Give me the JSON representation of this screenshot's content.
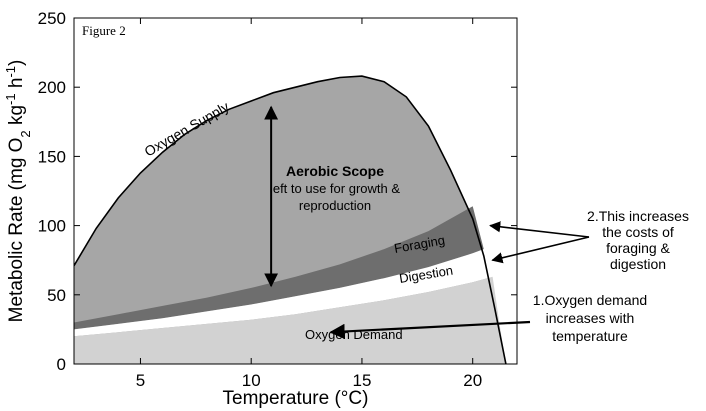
{
  "chart_data": {
    "type": "area",
    "figure_label": "Figure 2",
    "xlabel": "Temperature (°C)",
    "ylabel_parts": [
      "Metabolic Rate (mg O",
      "2",
      " kg",
      "-1",
      " h",
      "-1",
      ")"
    ],
    "xlim": [
      2,
      22
    ],
    "ylim": [
      0,
      250
    ],
    "xticks": [
      5,
      10,
      15,
      20
    ],
    "yticks": [
      0,
      50,
      100,
      150,
      200,
      250
    ],
    "grid": false,
    "colors": {
      "supply_fill": "#a6a6a6",
      "foraging_fill": "#6e6e6e",
      "digestion_fill": "#ffffff",
      "demand_fill": "#d2d2d2",
      "line": "#000000"
    },
    "series": [
      {
        "name": "Oxygen Supply",
        "x": [
          2,
          3,
          4,
          5,
          6,
          7,
          8,
          9,
          10,
          11,
          12,
          13,
          14,
          15,
          16,
          17,
          18,
          19,
          20,
          20.5,
          21,
          21.5
        ],
        "y": [
          71,
          98,
          120,
          138,
          153,
          166,
          176,
          184,
          190,
          196,
          200,
          204,
          207,
          208,
          204,
          193,
          172,
          140,
          105,
          78,
          40,
          0
        ]
      },
      {
        "name": "Foraging",
        "x": [
          2,
          4,
          6,
          8,
          10,
          12,
          14,
          16,
          18,
          20
        ],
        "y": [
          30,
          36,
          42,
          48,
          55,
          63,
          72,
          83,
          96,
          114
        ]
      },
      {
        "name": "Digestion",
        "x": [
          2,
          4,
          6,
          8,
          10,
          12,
          14,
          16,
          18,
          20,
          20.5
        ],
        "y": [
          25,
          29,
          33,
          38,
          43,
          49,
          55,
          62,
          70,
          80,
          83
        ]
      },
      {
        "name": "Oxygen Demand",
        "x": [
          2,
          4,
          6,
          8,
          10,
          12,
          14,
          16,
          18,
          20,
          20.9
        ],
        "y": [
          20,
          23,
          26,
          29,
          32,
          36,
          41,
          46,
          52,
          59,
          63
        ]
      }
    ],
    "annotations": {
      "aerobic_title": "Aerobic Scope",
      "aerobic_line1": "left to use for growth &",
      "aerobic_line2": "reproduction",
      "aerobic_arrow": {
        "x": 10.9,
        "y_top": 190,
        "y_bottom": 55
      },
      "supply_label": "Oxygen Supply",
      "foraging_label": "Foraging",
      "digestion_label": "Digestion",
      "demand_label": "Oxygen Demand",
      "note1_lines": [
        "1.Oxygen demand",
        "increases with",
        "temperature"
      ],
      "note1_target": {
        "x": 13.6,
        "y": 23
      },
      "note2_lines": [
        "2.This increases",
        "the costs of",
        "foraging &",
        "digestion"
      ],
      "note2_targets": [
        {
          "x": 20.7,
          "y": 100
        },
        {
          "x": 20.8,
          "y": 75
        }
      ]
    }
  }
}
